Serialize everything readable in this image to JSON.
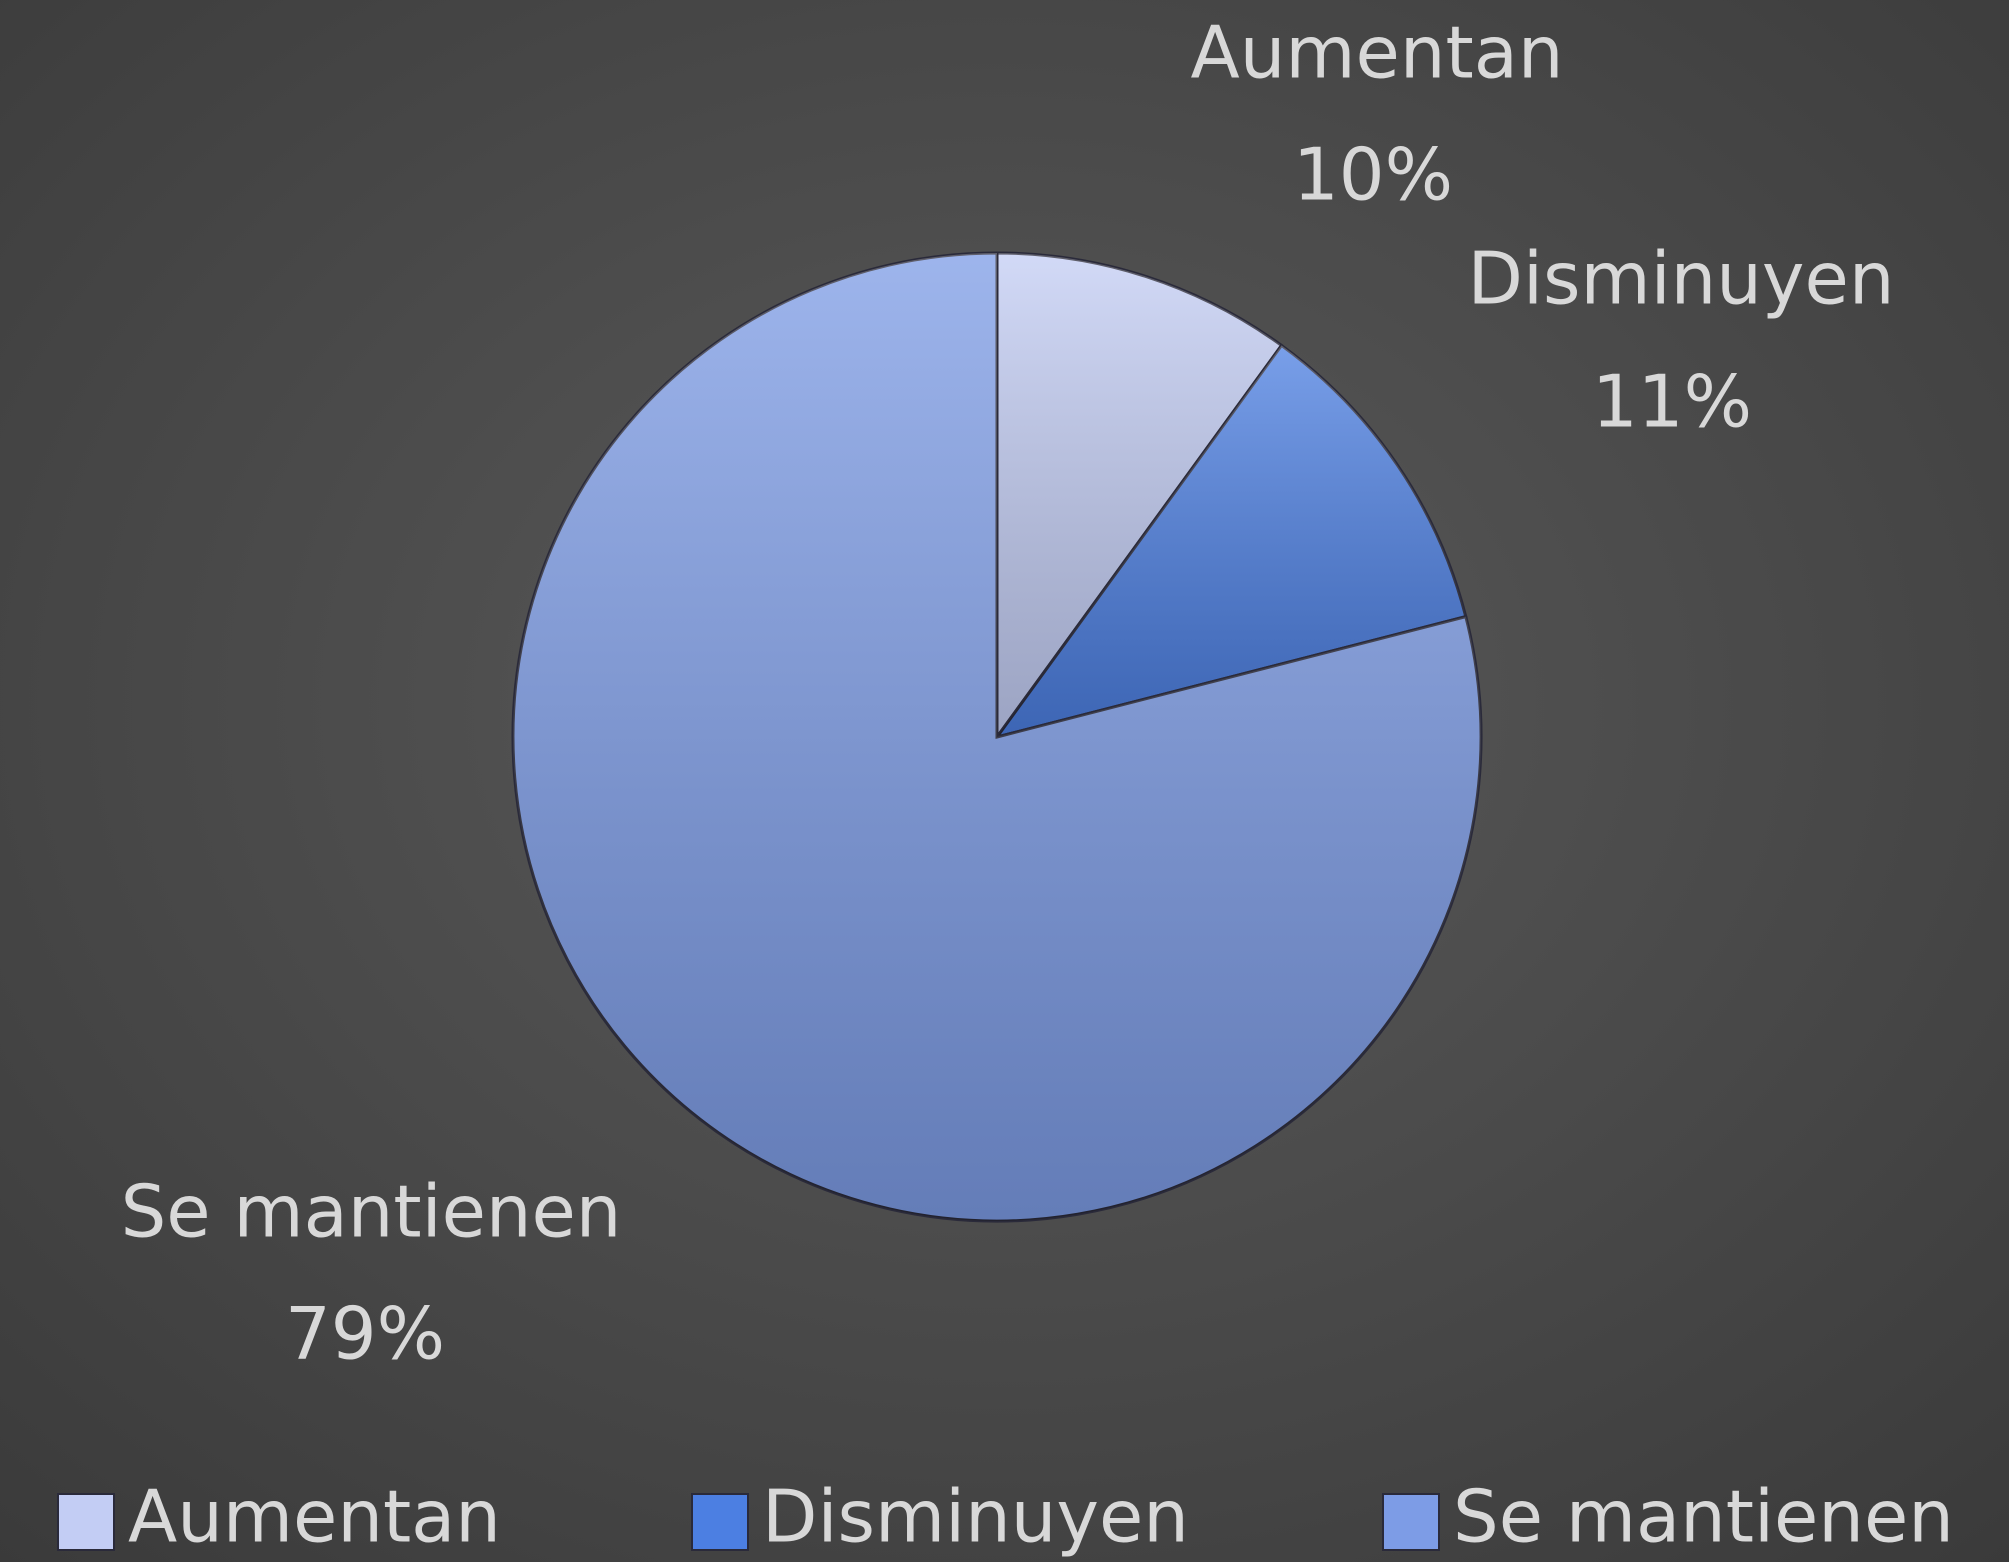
{
  "chart_data": {
    "type": "pie",
    "categories": [
      "Aumentan",
      "Disminuyen",
      "Se mantienen"
    ],
    "values": [
      10,
      11,
      79
    ],
    "value_labels": [
      "10%",
      "11%",
      "79%"
    ],
    "colors": [
      "#c3cdf4",
      "#4c7fe2",
      "#7d9ce6"
    ],
    "legend": "bottom"
  }
}
